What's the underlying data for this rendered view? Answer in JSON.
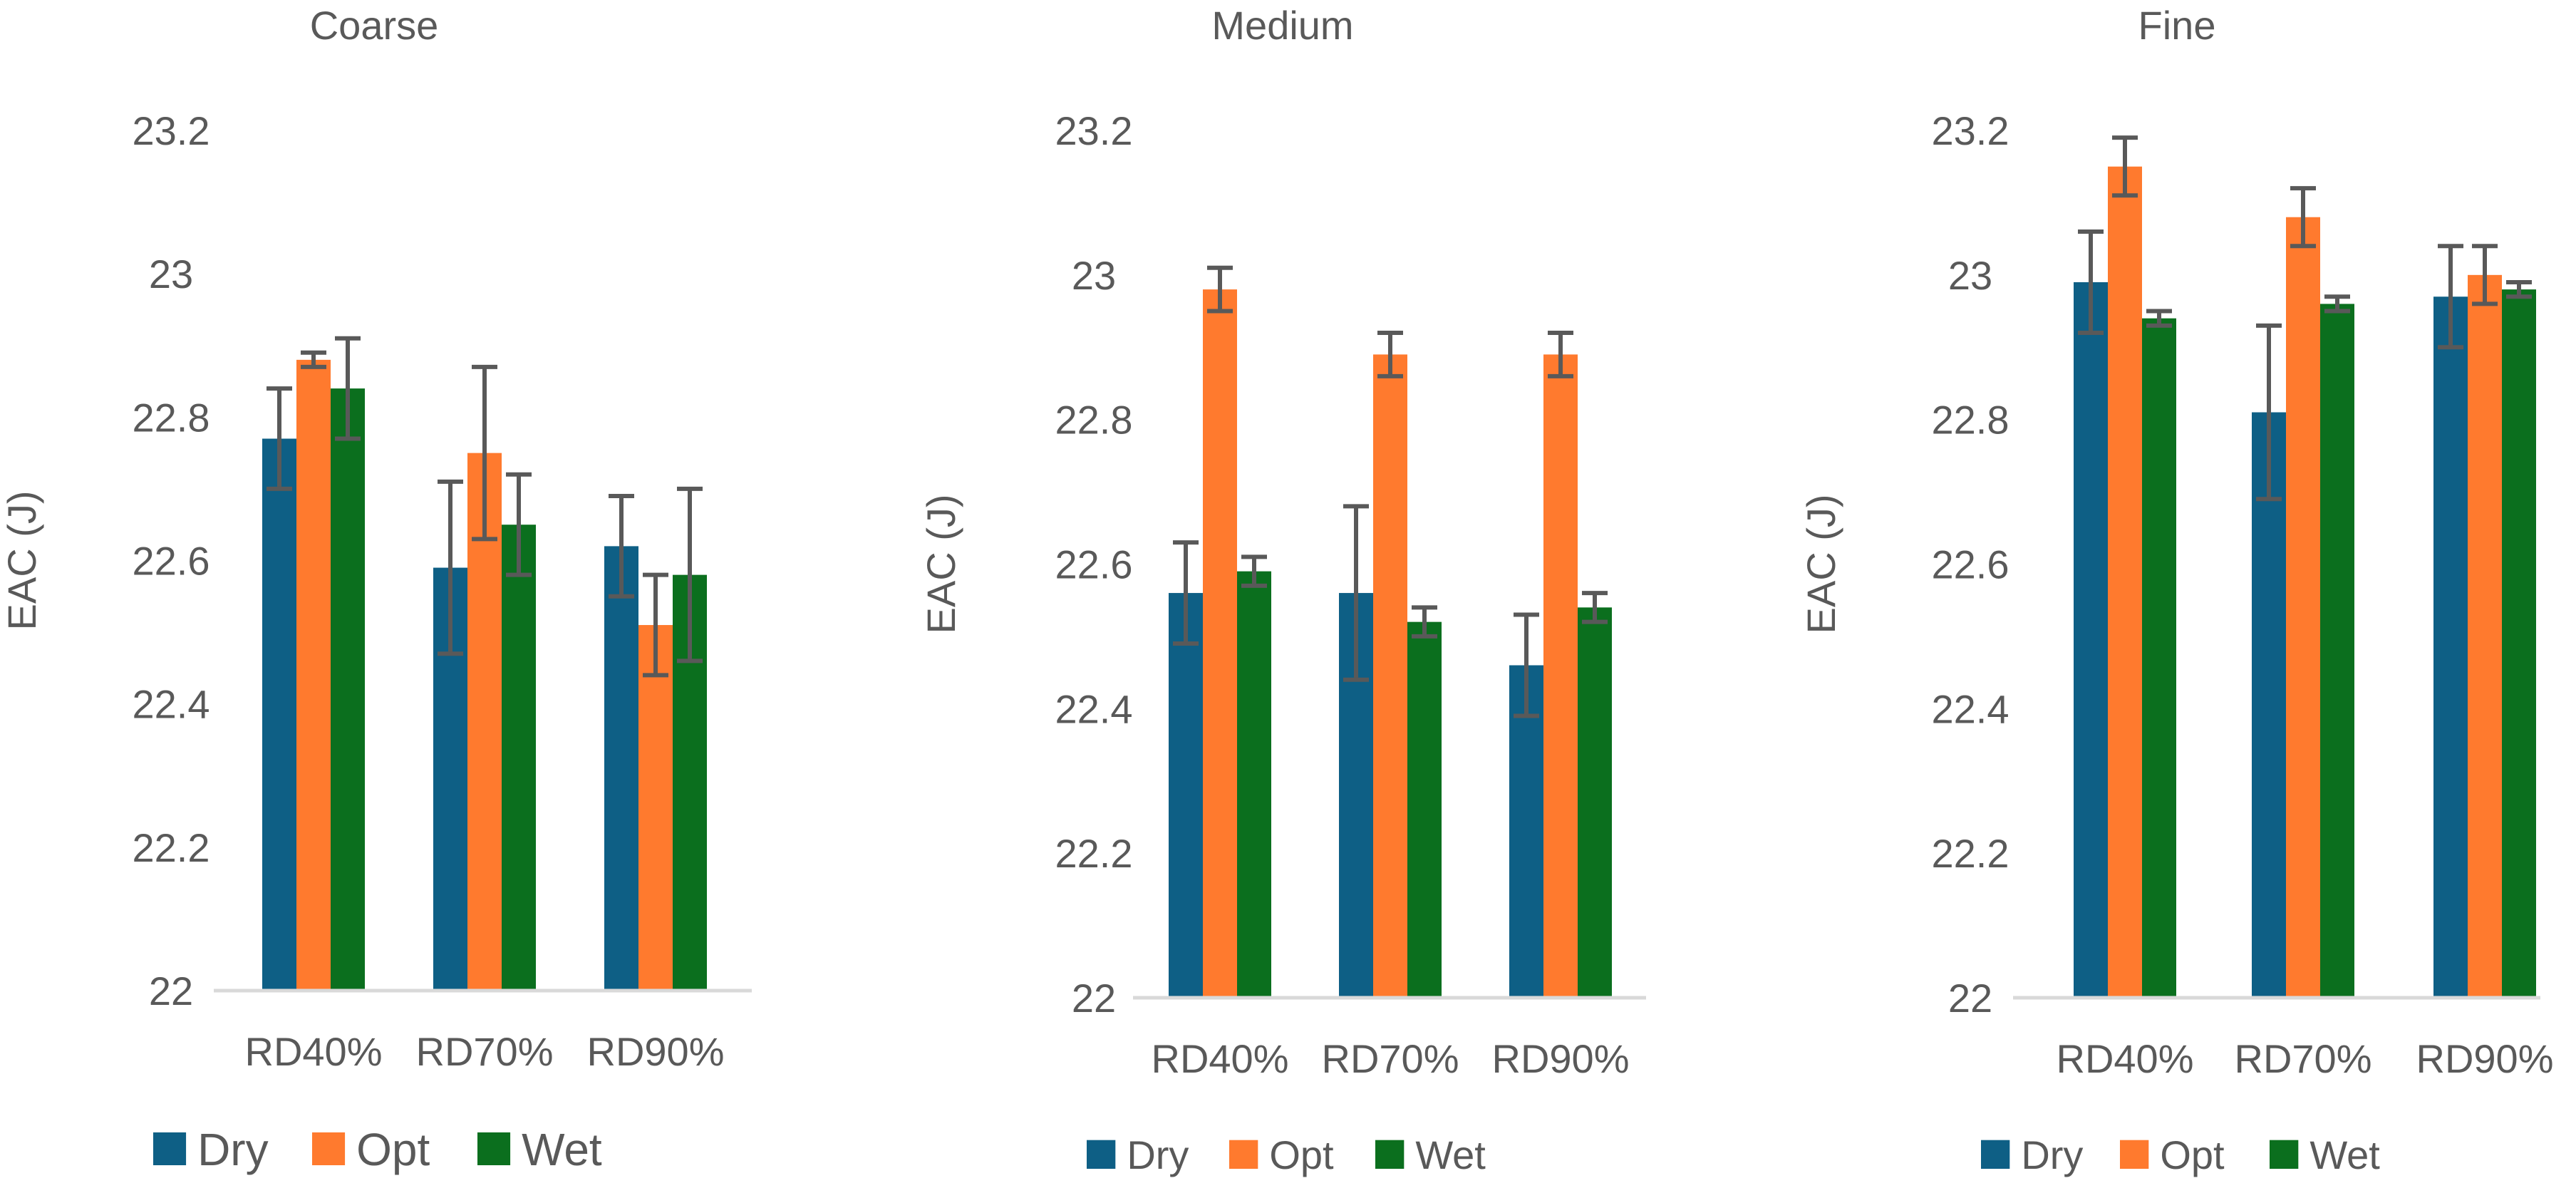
{
  "chart_data": [
    {
      "type": "bar",
      "title": "Coarse",
      "ylabel": "EAC (J)",
      "xlabel": "",
      "ylim": [
        22,
        23.2
      ],
      "yticks": [
        "22",
        "22.2",
        "22.4",
        "22.6",
        "22.8",
        "23",
        "23.2"
      ],
      "categories": [
        "RD40%",
        "RD70%",
        "RD90%"
      ],
      "series": [
        {
          "name": "Dry",
          "values": [
            22.77,
            22.59,
            22.62
          ],
          "errors": [
            0.07,
            0.12,
            0.07
          ]
        },
        {
          "name": "Opt",
          "values": [
            22.88,
            22.75,
            22.51
          ],
          "errors": [
            0.01,
            0.12,
            0.07
          ]
        },
        {
          "name": "Wet",
          "values": [
            22.84,
            22.65,
            22.58
          ],
          "errors": [
            0.07,
            0.07,
            0.12
          ]
        }
      ],
      "legend": "bottom"
    },
    {
      "type": "bar",
      "title": "Medium",
      "ylabel": "EAC (J)",
      "xlabel": "",
      "ylim": [
        22,
        23.2
      ],
      "yticks": [
        "22",
        "22.2",
        "22.4",
        "22.6",
        "22.8",
        "23",
        "23.2"
      ],
      "categories": [
        "RD40%",
        "RD70%",
        "RD90%"
      ],
      "series": [
        {
          "name": "Dry",
          "values": [
            22.56,
            22.56,
            22.46
          ],
          "errors": [
            0.07,
            0.12,
            0.07
          ]
        },
        {
          "name": "Opt",
          "values": [
            22.98,
            22.89,
            22.89
          ],
          "errors": [
            0.03,
            0.03,
            0.03
          ]
        },
        {
          "name": "Wet",
          "values": [
            22.59,
            22.52,
            22.54
          ],
          "errors": [
            0.02,
            0.02,
            0.02
          ]
        }
      ],
      "legend": "bottom"
    },
    {
      "type": "bar",
      "title": "Fine",
      "ylabel": "EAC (J)",
      "xlabel": "",
      "ylim": [
        22,
        23.2
      ],
      "yticks": [
        "22",
        "22.2",
        "22.4",
        "22.6",
        "22.8",
        "23",
        "23.2"
      ],
      "categories": [
        "RD40%",
        "RD70%",
        "RD90%"
      ],
      "series": [
        {
          "name": "Dry",
          "values": [
            22.99,
            22.81,
            22.97
          ],
          "errors": [
            0.07,
            0.12,
            0.07
          ]
        },
        {
          "name": "Opt",
          "values": [
            23.15,
            23.08,
            23.0
          ],
          "errors": [
            0.04,
            0.04,
            0.04
          ]
        },
        {
          "name": "Wet",
          "values": [
            22.94,
            22.96,
            22.98
          ],
          "errors": [
            0.01,
            0.01,
            0.01
          ]
        }
      ],
      "legend": "bottom"
    }
  ],
  "colors": {
    "Dry": "#0E5F85",
    "Opt": "#FF7A2E",
    "Wet": "#0B6F1E",
    "axis": "#D9D9D9",
    "text": "#595959",
    "errorbar": "#595959"
  }
}
